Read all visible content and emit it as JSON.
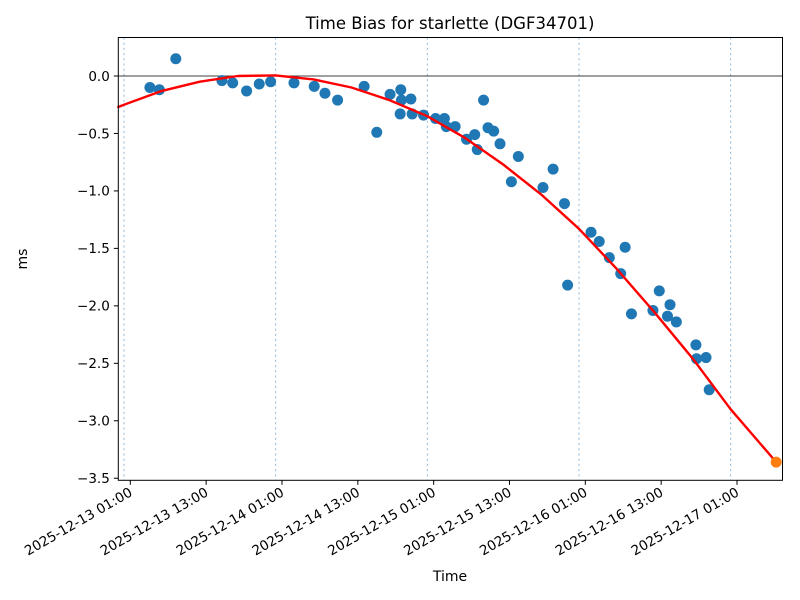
{
  "chart_data": {
    "type": "scatter",
    "title": "Time Bias for starlette (DGF34701)",
    "xlabel": "Time",
    "ylabel": "ms",
    "epoch": "2025-12-13 00:00",
    "xlim_hours": [
      -0.9,
      104.2
    ],
    "ylim_ms": [
      -3.518,
      0.335
    ],
    "grid": "vertical dashed lines at each midnight",
    "legend": "none",
    "x_ticks": [
      "2025-12-13 01:00",
      "2025-12-13 13:00",
      "2025-12-14 01:00",
      "2025-12-14 13:00",
      "2025-12-15 01:00",
      "2025-12-15 13:00",
      "2025-12-16 01:00",
      "2025-12-16 13:00",
      "2025-12-17 01:00"
    ],
    "y_ticks": [
      {
        "value": 0.0,
        "label": "0.0"
      },
      {
        "value": -0.5,
        "label": "−0.5"
      },
      {
        "value": -1.0,
        "label": "−1.0"
      },
      {
        "value": -1.5,
        "label": "−1.5"
      },
      {
        "value": -2.0,
        "label": "−2.0"
      },
      {
        "value": -2.5,
        "label": "−2.5"
      },
      {
        "value": -3.0,
        "label": "−3.0"
      },
      {
        "value": -3.5,
        "label": "−3.5"
      }
    ],
    "x_gridlines": [
      "2025-12-13 00:00",
      "2025-12-14 00:00",
      "2025-12-15 00:00",
      "2025-12-16 00:00",
      "2025-12-17 00:00"
    ],
    "zero_line_ms": 0,
    "series": [
      {
        "name": "time-bias-observations",
        "type": "scatter",
        "color": "#1f77b4",
        "points": [
          {
            "time": "2025-12-13 04:06",
            "ms": -0.1
          },
          {
            "time": "2025-12-13 05:36",
            "ms": -0.12
          },
          {
            "time": "2025-12-13 08:12",
            "ms": 0.15
          },
          {
            "time": "2025-12-13 15:30",
            "ms": -0.04
          },
          {
            "time": "2025-12-13 17:12",
            "ms": -0.06
          },
          {
            "time": "2025-12-13 19:24",
            "ms": -0.13
          },
          {
            "time": "2025-12-13 21:24",
            "ms": -0.07
          },
          {
            "time": "2025-12-13 23:12",
            "ms": -0.05
          },
          {
            "time": "2025-12-14 02:54",
            "ms": -0.06
          },
          {
            "time": "2025-12-14 06:06",
            "ms": -0.09
          },
          {
            "time": "2025-12-14 07:48",
            "ms": -0.15
          },
          {
            "time": "2025-12-14 09:48",
            "ms": -0.21
          },
          {
            "time": "2025-12-14 14:00",
            "ms": -0.09
          },
          {
            "time": "2025-12-14 16:00",
            "ms": -0.49
          },
          {
            "time": "2025-12-14 18:06",
            "ms": -0.16
          },
          {
            "time": "2025-12-14 19:48",
            "ms": -0.12
          },
          {
            "time": "2025-12-14 19:54",
            "ms": -0.21
          },
          {
            "time": "2025-12-14 21:24",
            "ms": -0.2
          },
          {
            "time": "2025-12-14 19:42",
            "ms": -0.33
          },
          {
            "time": "2025-12-14 21:36",
            "ms": -0.33
          },
          {
            "time": "2025-12-14 23:24",
            "ms": -0.34
          },
          {
            "time": "2025-12-15 01:18",
            "ms": -0.37
          },
          {
            "time": "2025-12-15 02:42",
            "ms": -0.37
          },
          {
            "time": "2025-12-15 03:00",
            "ms": -0.44
          },
          {
            "time": "2025-12-15 04:24",
            "ms": -0.44
          },
          {
            "time": "2025-12-15 06:12",
            "ms": -0.55
          },
          {
            "time": "2025-12-15 07:30",
            "ms": -0.51
          },
          {
            "time": "2025-12-15 07:54",
            "ms": -0.64
          },
          {
            "time": "2025-12-15 08:54",
            "ms": -0.21
          },
          {
            "time": "2025-12-15 09:36",
            "ms": -0.45
          },
          {
            "time": "2025-12-15 10:30",
            "ms": -0.48
          },
          {
            "time": "2025-12-15 11:30",
            "ms": -0.59
          },
          {
            "time": "2025-12-15 13:18",
            "ms": -0.92
          },
          {
            "time": "2025-12-15 14:24",
            "ms": -0.7
          },
          {
            "time": "2025-12-15 18:18",
            "ms": -0.97
          },
          {
            "time": "2025-12-15 19:54",
            "ms": -0.81
          },
          {
            "time": "2025-12-15 21:42",
            "ms": -1.11
          },
          {
            "time": "2025-12-15 22:12",
            "ms": -1.82
          },
          {
            "time": "2025-12-16 01:54",
            "ms": -1.36
          },
          {
            "time": "2025-12-16 03:12",
            "ms": -1.44
          },
          {
            "time": "2025-12-16 04:48",
            "ms": -1.58
          },
          {
            "time": "2025-12-16 06:36",
            "ms": -1.72
          },
          {
            "time": "2025-12-16 07:18",
            "ms": -1.49
          },
          {
            "time": "2025-12-16 08:18",
            "ms": -2.07
          },
          {
            "time": "2025-12-16 11:42",
            "ms": -2.04
          },
          {
            "time": "2025-12-16 12:42",
            "ms": -1.87
          },
          {
            "time": "2025-12-16 14:00",
            "ms": -2.09
          },
          {
            "time": "2025-12-16 14:24",
            "ms": -1.99
          },
          {
            "time": "2025-12-16 15:24",
            "ms": -2.14
          },
          {
            "time": "2025-12-16 18:30",
            "ms": -2.34
          },
          {
            "time": "2025-12-16 18:36",
            "ms": -2.46
          },
          {
            "time": "2025-12-16 20:06",
            "ms": -2.45
          },
          {
            "time": "2025-12-16 20:36",
            "ms": -2.73
          }
        ]
      },
      {
        "name": "polynomial-fit",
        "type": "line",
        "color": "#ff0000",
        "hours_from_epoch": [
          -0.9,
          0,
          6,
          12,
          18,
          24,
          30,
          36,
          42,
          48,
          54,
          60,
          66,
          72,
          78,
          84,
          90,
          96,
          103.2
        ],
        "ms": [
          -0.27,
          -0.25,
          -0.13,
          -0.05,
          0.0,
          0.005,
          -0.03,
          -0.1,
          -0.21,
          -0.35,
          -0.54,
          -0.77,
          -1.03,
          -1.33,
          -1.68,
          -2.06,
          -2.46,
          -2.9,
          -3.36
        ]
      },
      {
        "name": "extrapolated-point",
        "type": "scatter",
        "color": "#ff7f0e",
        "points": [
          {
            "time": "2025-12-17 07:12",
            "ms": -3.36
          }
        ]
      }
    ],
    "colors": {
      "scatter": "#1f77b4",
      "fit_line": "#ff0000",
      "extrapolated": "#ff7f0e",
      "gridline": "#7fafd4",
      "zero_line": "#000000",
      "background": "#ffffff"
    }
  }
}
